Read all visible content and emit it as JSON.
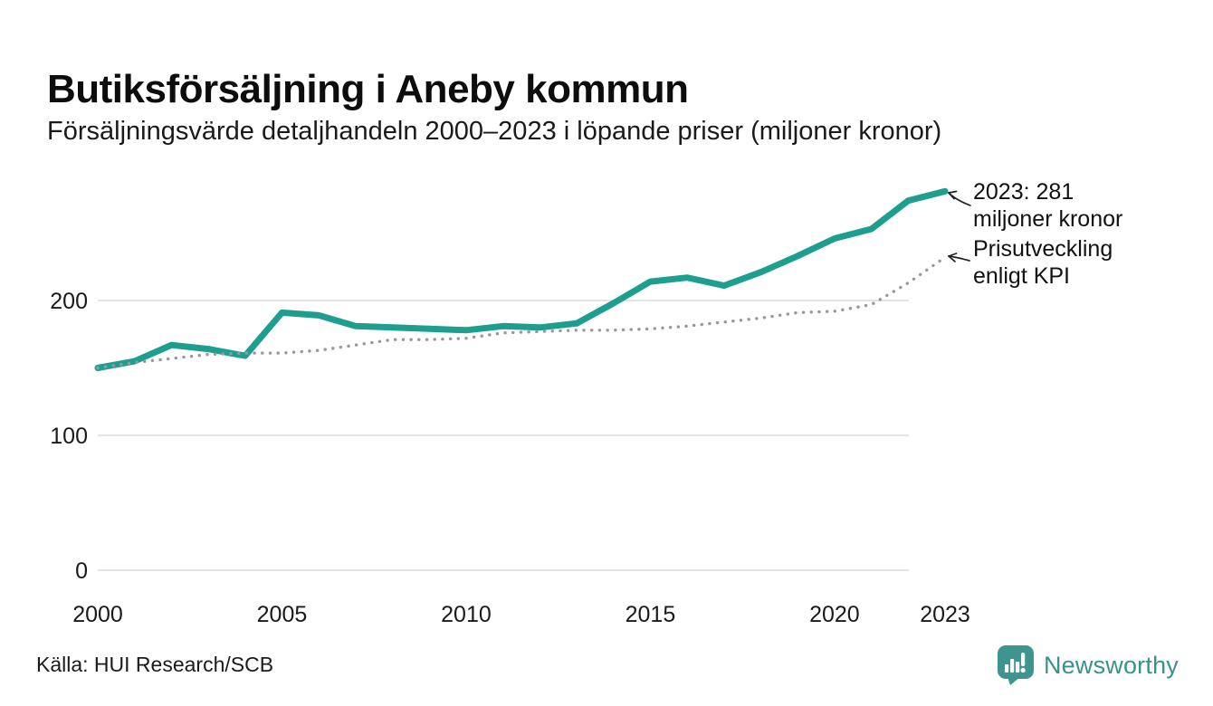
{
  "chart_data": {
    "type": "line",
    "title": "Butiksförsäljning i Aneby kommun",
    "subtitle": "Försäljningsvärde detaljhandeln 2000–2023 i löpande priser (miljoner kronor)",
    "x": [
      2000,
      2001,
      2002,
      2003,
      2004,
      2005,
      2006,
      2007,
      2008,
      2009,
      2010,
      2011,
      2012,
      2013,
      2014,
      2015,
      2016,
      2017,
      2018,
      2019,
      2020,
      2021,
      2022,
      2023
    ],
    "series": [
      {
        "name": "Butiksförsäljning i löpande priser (miljoner kronor)",
        "style": "solid",
        "color": "#1d9e8f",
        "values": [
          150,
          155,
          167,
          164,
          159,
          191,
          189,
          181,
          180,
          179,
          178,
          181,
          180,
          183,
          198,
          214,
          217,
          211,
          221,
          233,
          246,
          253,
          274,
          281
        ]
      },
      {
        "name": "Prisutveckling enligt KPI",
        "style": "dotted",
        "color": "#999999",
        "values": [
          150,
          154,
          157,
          160,
          161,
          161,
          163,
          167,
          171,
          171,
          172,
          176,
          177,
          178,
          178,
          179,
          181,
          184,
          187,
          191,
          192,
          197,
          213,
          232
        ]
      }
    ],
    "ylim": [
      0,
      290
    ],
    "y_ticks": [
      0,
      100,
      200
    ],
    "x_ticks": [
      2000,
      2005,
      2010,
      2015,
      2020,
      2023
    ],
    "x_axis_range": [
      2000,
      2023
    ],
    "grid": "horizontal-only",
    "legend_position": "annotations-right",
    "annotations": {
      "sales": [
        "2023: 281",
        "miljoner kronor"
      ],
      "kpi": [
        "Prisutveckling",
        "enligt KPI"
      ]
    }
  },
  "footer": {
    "source": "Källa: HUI Research/SCB"
  },
  "brand": {
    "name": "Newsworthy",
    "icon": "newsworthy-chart-bubble-icon",
    "color": "#3a918b"
  },
  "colors": {
    "accent": "#1d9e8f",
    "kpi_line": "#999999",
    "grid": "#e3e3e3",
    "text": "#1a1a1a"
  }
}
